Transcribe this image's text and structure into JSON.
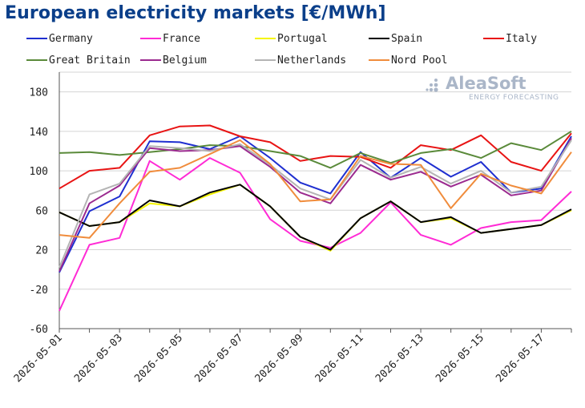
{
  "chart_data": {
    "type": "line",
    "title": "European electricity markets [€/MWh]",
    "xlabel": "",
    "ylabel": "",
    "ylim": [
      -60,
      200
    ],
    "yticks": [
      -60,
      -20,
      20,
      60,
      100,
      140,
      180
    ],
    "xtick_labels": [
      "2026-05-01",
      "2026-05-03",
      "2026-05-05",
      "2026-05-07",
      "2026-05-09",
      "2026-05-11",
      "2026-05-13",
      "2026-05-15",
      "2026-05-17"
    ],
    "x": [
      "2026-05-01",
      "2026-05-02",
      "2026-05-03",
      "2026-05-04",
      "2026-05-05",
      "2026-05-06",
      "2026-05-07",
      "2026-05-08",
      "2026-05-09",
      "2026-05-10",
      "2026-05-11",
      "2026-05-12",
      "2026-05-13",
      "2026-05-14",
      "2026-05-15",
      "2026-05-16",
      "2026-05-17",
      "2026-05-18"
    ],
    "grid": "horizontal",
    "legend_position": "top",
    "series": [
      {
        "name": "Germany",
        "color": "#1f2fd0",
        "values": [
          -3,
          59,
          74,
          130,
          129,
          122,
          135,
          113,
          88,
          77,
          119,
          93,
          113,
          94,
          109,
          78,
          82,
          135
        ]
      },
      {
        "name": "France",
        "color": "#ff2bd5",
        "values": [
          -42,
          25,
          32,
          110,
          91,
          113,
          98,
          51,
          29,
          22,
          37,
          68,
          35,
          25,
          42,
          48,
          50,
          79
        ]
      },
      {
        "name": "Portugal",
        "color": "#f5f500",
        "values": [
          58,
          44,
          48,
          67,
          64,
          76,
          86,
          64,
          33,
          19,
          52,
          69,
          48,
          52,
          37,
          41,
          45,
          60
        ]
      },
      {
        "name": "Spain",
        "color": "#000000",
        "values": [
          58,
          44,
          48,
          70,
          64,
          78,
          86,
          64,
          33,
          20,
          52,
          69,
          48,
          53,
          37,
          41,
          45,
          61
        ]
      },
      {
        "name": "Italy",
        "color": "#e81414",
        "values": [
          82,
          100,
          103,
          136,
          145,
          146,
          135,
          129,
          110,
          115,
          114,
          103,
          126,
          121,
          136,
          109,
          100,
          138
        ]
      },
      {
        "name": "Great Britain",
        "color": "#5a8a3a",
        "values": [
          118,
          119,
          116,
          119,
          122,
          126,
          125,
          120,
          115,
          103,
          118,
          108,
          118,
          122,
          113,
          128,
          121,
          140
        ]
      },
      {
        "name": "Belgium",
        "color": "#9b2a8f",
        "values": [
          -2,
          67,
          85,
          123,
          120,
          121,
          125,
          104,
          78,
          67,
          106,
          91,
          99,
          84,
          96,
          75,
          80,
          133
        ]
      },
      {
        "name": "Netherlands",
        "color": "#b4b4b4",
        "values": [
          2,
          76,
          87,
          125,
          123,
          120,
          127,
          106,
          82,
          71,
          111,
          93,
          104,
          87,
          100,
          78,
          84,
          131
        ]
      },
      {
        "name": "Nord Pool",
        "color": "#f08c3c",
        "values": [
          35,
          32,
          67,
          99,
          103,
          117,
          131,
          107,
          69,
          71,
          115,
          107,
          106,
          62,
          97,
          85,
          77,
          119
        ]
      }
    ]
  },
  "branding": {
    "name": "AleaSoft",
    "tagline": "ENERGY FORECASTING"
  }
}
